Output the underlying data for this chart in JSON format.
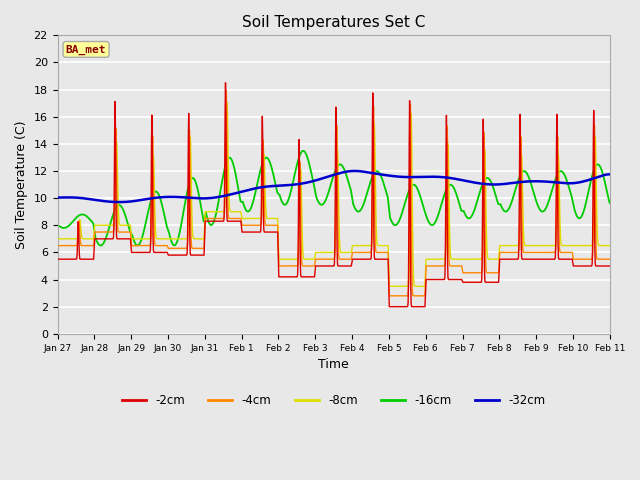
{
  "title": "Soil Temperatures Set C",
  "xlabel": "Time",
  "ylabel": "Soil Temperature (C)",
  "ylim": [
    0,
    22
  ],
  "yticks": [
    0,
    2,
    4,
    6,
    8,
    10,
    12,
    14,
    16,
    18,
    20,
    22
  ],
  "background_color": "#e8e8e8",
  "plot_bg_color": "#e8e8e8",
  "grid_color": "#ffffff",
  "legend_labels": [
    "-2cm",
    "-4cm",
    "-8cm",
    "-16cm",
    "-32cm"
  ],
  "legend_colors": [
    "#dd0000",
    "#ff8800",
    "#dddd00",
    "#00cc00",
    "#0000cc"
  ],
  "annotation_text": "BA_met",
  "annotation_box_color": "#ffff99",
  "annotation_text_color": "#880000",
  "line_width": 1.0,
  "xticklabels": [
    "Jan 27",
    "Jan 28",
    "Jan 29",
    "Jan 30",
    "Jan 31",
    "Feb 1",
    "Feb 2",
    "Feb 3",
    "Feb 4",
    "Feb 5",
    "Feb 6",
    "Feb 7",
    "Feb 8",
    "Feb 9",
    "Feb 10",
    "Feb 11"
  ]
}
